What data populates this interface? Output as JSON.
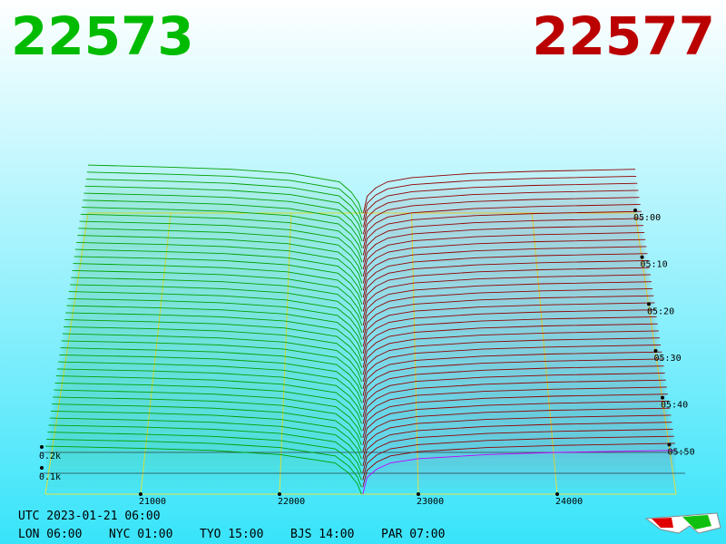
{
  "header": {
    "bid_price": "22573",
    "ask_price": "22577"
  },
  "chart_data": {
    "type": "depth3d",
    "xlim": [
      20314,
      24856
    ],
    "xticks": [
      21000,
      22000,
      23000,
      24000
    ],
    "depth_ticks": [
      {
        "value": 0.1,
        "label": "0.1k"
      },
      {
        "value": 0.2,
        "label": "0.2k"
      }
    ],
    "tlim": [
      0,
      60
    ],
    "time_ticks": [
      {
        "value": 0,
        "label": "05:00"
      },
      {
        "value": 10,
        "label": "05:10"
      },
      {
        "value": 20,
        "label": "05:20"
      },
      {
        "value": 30,
        "label": "05:30"
      },
      {
        "value": 40,
        "label": "05:40"
      },
      {
        "value": 50,
        "label": "05:50"
      }
    ],
    "bids": {
      "color": "#00a000",
      "x": [
        22590,
        22560,
        22500,
        22400,
        22000,
        21500,
        21000,
        20314
      ],
      "values": [
        0,
        0.05,
        0.1,
        0.15,
        0.19,
        0.21,
        0.22,
        0.23
      ]
    },
    "asks": {
      "color": "#900000",
      "x": [
        22600,
        22630,
        22700,
        22800,
        23000,
        23500,
        24000,
        24856
      ],
      "values": [
        0,
        0.08,
        0.12,
        0.15,
        0.17,
        0.19,
        0.2,
        0.21
      ]
    }
  },
  "footer": {
    "utc": "UTC 2023-01-21 06:00",
    "clocks": [
      "LON 06:00",
      "NYC 01:00",
      "TYO 15:00",
      "BJS 14:00",
      "PAR 07:00"
    ]
  }
}
